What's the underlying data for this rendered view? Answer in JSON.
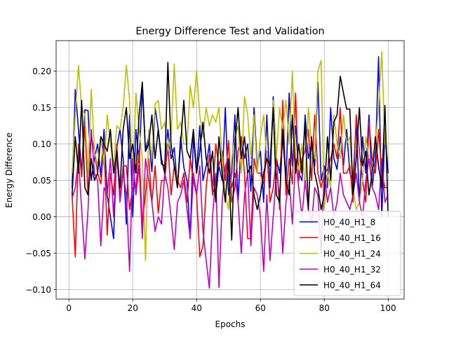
{
  "chart_data": {
    "type": "line",
    "title": "Energy Difference Test and Validation",
    "xlabel": "Epochs",
    "ylabel": "Energy Difference",
    "xlim": [
      -4,
      105
    ],
    "ylim": [
      -0.113,
      0.242
    ],
    "xticks": [
      0,
      20,
      40,
      60,
      80,
      100
    ],
    "xtick_labels": [
      "0",
      "20",
      "40",
      "60",
      "80",
      "100"
    ],
    "yticks": [
      -0.1,
      -0.05,
      0.0,
      0.05,
      0.1,
      0.15,
      0.2
    ],
    "ytick_labels": [
      "−0.10",
      "−0.05",
      "0.00",
      "0.05",
      "0.10",
      "0.15",
      "0.20"
    ],
    "grid": true,
    "legend_position": "bottom-right",
    "x": [
      1,
      2,
      3,
      4,
      5,
      6,
      7,
      8,
      9,
      10,
      11,
      12,
      13,
      14,
      15,
      16,
      17,
      18,
      19,
      20,
      21,
      22,
      23,
      24,
      25,
      26,
      27,
      28,
      29,
      30,
      31,
      32,
      33,
      34,
      35,
      36,
      37,
      38,
      39,
      40,
      41,
      42,
      43,
      44,
      45,
      46,
      47,
      48,
      49,
      50,
      51,
      52,
      53,
      54,
      55,
      56,
      57,
      58,
      59,
      60,
      61,
      62,
      63,
      64,
      65,
      66,
      67,
      68,
      69,
      70,
      71,
      72,
      73,
      74,
      75,
      76,
      77,
      78,
      79,
      80,
      81,
      82,
      83,
      84,
      85,
      86,
      87,
      88,
      89,
      90,
      91,
      92,
      93,
      94,
      95,
      96,
      97,
      98,
      99,
      100
    ],
    "series": [
      {
        "name": "H0_40_H1_8",
        "color": "#0000ff",
        "values": [
          0.04,
          0.175,
          0.12,
          0.06,
          0.147,
          0.146,
          0.05,
          0.08,
          0.1,
          0.055,
          0.12,
          0.03,
          0.0,
          -0.03,
          0.095,
          0.12,
          0.08,
          -0.01,
          0.14,
          0.0,
          0.12,
          0.075,
          0.178,
          0.09,
          0.11,
          0.062,
          0.15,
          0.12,
          0.072,
          0.07,
          0.12,
          0.08,
          0.095,
          0.04,
          0.11,
          0.068,
          0.05,
          -0.03,
          0.11,
          0.06,
          0.125,
          0.05,
          0.07,
          0.1,
          0.04,
          0.028,
          0.07,
          0.05,
          0.15,
          0.03,
          0.06,
          0.14,
          0.02,
          0.11,
          0.08,
          0.1,
          0.035,
          0.15,
          0.07,
          0.09,
          0.02,
          0.14,
          0.04,
          0.165,
          0.08,
          0.06,
          0.11,
          0.05,
          0.17,
          0.07,
          0.125,
          0.06,
          0.05,
          0.14,
          0.08,
          0.1,
          0.07,
          0.185,
          0.05,
          0.07,
          0.04,
          0.15,
          0.08,
          0.065,
          0.11,
          0.07,
          0.12,
          0.06,
          0.05,
          0.13,
          0.02,
          0.11,
          0.06,
          0.14,
          0.04,
          0.08,
          0.22,
          0.0,
          0.12,
          0.06
        ]
      },
      {
        "name": "H0_40_H1_16",
        "color": "#ff0000",
        "values": [
          0.03,
          -0.055,
          0.1,
          0.055,
          0.125,
          0.03,
          0.11,
          0.09,
          0.06,
          0.045,
          0.1,
          -0.025,
          0.06,
          0.03,
          0.1,
          0.025,
          0.07,
          0.07,
          0.01,
          0.04,
          0.04,
          0.09,
          -0.01,
          0.03,
          0.08,
          0.02,
          0.07,
          0.005,
          0.05,
          0.05,
          0.1,
          0.03,
          0.07,
          0.05,
          0.04,
          0.06,
          0.02,
          0.08,
          0.05,
          0.03,
          -0.055,
          -0.04,
          0.04,
          0.085,
          0.03,
          0.1,
          0.07,
          0.09,
          0.05,
          0.105,
          0.02,
          0.04,
          0.09,
          0.11,
          0.06,
          -0.03,
          -0.03,
          0.08,
          0.06,
          0.06,
          0.045,
          0.09,
          0.02,
          0.04,
          0.08,
          0.01,
          0.16,
          0.03,
          0.08,
          0.045,
          0.17,
          0.05,
          0.08,
          0.09,
          0.12,
          0.05,
          0.14,
          0.06,
          0.04,
          0.06,
          0.065,
          0.08,
          0.1,
          0.08,
          0.15,
          0.06,
          0.06,
          0.07,
          0.02,
          0.14,
          0.09,
          0.05,
          0.02,
          0.13,
          0.08,
          0.06,
          0.12,
          0.06,
          0.04,
          0.04
        ]
      },
      {
        "name": "H0_40_H1_24",
        "color": "#bfbf00",
        "values": [
          0.06,
          0.14,
          0.208,
          0.15,
          0.14,
          0.06,
          0.175,
          0.09,
          0.07,
          0.11,
          0.07,
          0.14,
          0.1,
          0.07,
          0.125,
          0.12,
          0.15,
          0.208,
          0.16,
          0.05,
          0.17,
          0.12,
          0.08,
          -0.06,
          0.12,
          0.08,
          0.155,
          0.16,
          0.12,
          0.13,
          0.09,
          0.11,
          0.21,
          0.12,
          0.13,
          0.1,
          0.1,
          0.18,
          0.15,
          0.2,
          0.14,
          0.11,
          0.15,
          0.125,
          0.14,
          0.13,
          0.15,
          0.08,
          0.03,
          0.01,
          0.08,
          0.11,
          0.125,
          0.06,
          0.165,
          0.14,
          0.08,
          0.14,
          0.06,
          0.11,
          0.14,
          0.08,
          0.07,
          0.16,
          0.08,
          0.15,
          0.12,
          0.16,
          0.1,
          0.2,
          0.08,
          0.065,
          0.1,
          0.04,
          0.15,
          0.1,
          0.08,
          0.2,
          0.215,
          0.01,
          0.06,
          0.04,
          0.14,
          0.1,
          0.08,
          0.14,
          0.1,
          0.11,
          0.04,
          0.01,
          0.02,
          0.05,
          0.11,
          0.08,
          0.06,
          0.1,
          0.15,
          0.227,
          0.1,
          0.08
        ]
      },
      {
        "name": "H0_40_H1_32",
        "color": "#bf00bf",
        "values": [
          0.025,
          0.04,
          0.08,
          0.01,
          -0.058,
          0.01,
          0.12,
          0.06,
          0.05,
          -0.04,
          0.04,
          0.03,
          0.08,
          0.0,
          0.09,
          0.02,
          0.06,
          0.03,
          -0.075,
          0.08,
          0.03,
          0.07,
          -0.03,
          0.08,
          0.05,
          0.02,
          -0.02,
          0.0,
          -0.01,
          0.06,
          0.04,
          0.0,
          -0.045,
          0.02,
          0.03,
          0.05,
          0.01,
          -0.03,
          0.06,
          0.03,
          0.07,
          -0.02,
          -0.06,
          -0.098,
          0.0,
          0.06,
          -0.097,
          0.02,
          0.07,
          0.08,
          0.04,
          0.06,
          0.02,
          -0.05,
          0.03,
          0.06,
          -0.04,
          0.04,
          0.03,
          0.0,
          -0.075,
          0.03,
          -0.06,
          0.0,
          0.06,
          0.03,
          -0.05,
          0.02,
          0.05,
          -0.01,
          0.08,
          0.04,
          0.0,
          0.05,
          0.01,
          -0.01,
          0.04,
          0.03,
          -0.05,
          0.06,
          0.02,
          0.04,
          0.0,
          0.02,
          0.06,
          0.03,
          0.02,
          0.01,
          0.03,
          0.06,
          0.02,
          0.0,
          0.05,
          0.08,
          0.04,
          0.03,
          0.01,
          0.08,
          0.02,
          0.03
        ]
      },
      {
        "name": "H0_40_H1_64",
        "color": "#000000",
        "values": [
          0.03,
          0.11,
          0.06,
          0.16,
          0.04,
          0.03,
          0.08,
          0.05,
          0.06,
          0.11,
          0.1,
          0.09,
          0.12,
          0.06,
          0.09,
          0.04,
          0.12,
          0.15,
          0.08,
          0.1,
          0.06,
          0.14,
          0.185,
          0.09,
          0.1,
          0.14,
          0.08,
          0.12,
          0.08,
          0.06,
          0.212,
          0.1,
          0.07,
          0.04,
          0.1,
          0.16,
          0.09,
          0.08,
          0.12,
          0.06,
          0.09,
          0.13,
          0.08,
          0.06,
          0.09,
          0.02,
          0.11,
          0.06,
          0.02,
          0.08,
          -0.032,
          0.1,
          0.15,
          0.08,
          0.11,
          0.06,
          0.07,
          0.03,
          0.01,
          0.03,
          0.06,
          0.08,
          0.07,
          0.15,
          0.03,
          0.02,
          0.12,
          0.05,
          0.03,
          0.14,
          0.06,
          0.1,
          0.06,
          0.13,
          0.01,
          0.11,
          0.06,
          0.04,
          0.01,
          0.03,
          0.11,
          0.05,
          0.13,
          0.14,
          0.193,
          0.17,
          0.148,
          0.148,
          0.03,
          0.08,
          0.15,
          0.07,
          0.09,
          0.03,
          0.06,
          0.11,
          0.07,
          0.04,
          0.153,
          0.0
        ]
      }
    ]
  }
}
